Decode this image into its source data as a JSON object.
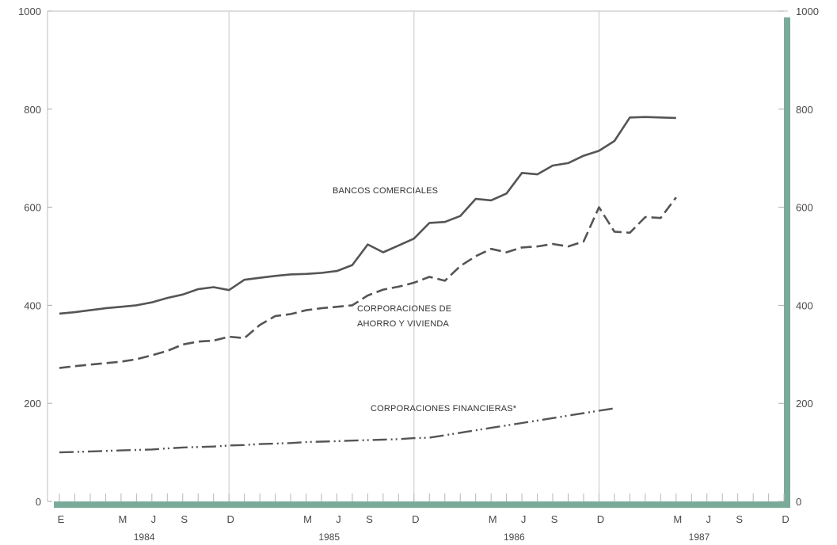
{
  "chart_data": {
    "type": "line",
    "ylim": [
      0,
      1000
    ],
    "y_ticks": [
      "0",
      "200",
      "400",
      "600",
      "800",
      "1000"
    ],
    "y_ticks_right": [
      "0",
      "200",
      "400",
      "600",
      "800",
      "1000"
    ],
    "month_ticks": [
      "E",
      "M",
      "J",
      "S",
      "D",
      "M",
      "J",
      "S",
      "D",
      "M",
      "J",
      "S",
      "D",
      "M",
      "J",
      "S",
      "D"
    ],
    "years": [
      "1984",
      "1985",
      "1986",
      "1987"
    ],
    "grid": "vertical lines at each December",
    "series": [
      {
        "name": "BANCOS COMERCIALES",
        "style": "solid",
        "color": "#555555",
        "values": [
          383,
          386,
          390,
          394,
          397,
          400,
          406,
          415,
          422,
          433,
          437,
          431,
          452,
          456,
          460,
          463,
          464,
          466,
          470,
          482,
          524,
          508,
          522,
          536,
          568,
          570,
          582,
          617,
          614,
          628,
          670,
          667,
          685,
          690,
          705,
          715,
          735,
          783,
          784,
          783,
          782
        ]
      },
      {
        "name": "CORPORACIONES DE AHORRO Y VIVIENDA",
        "style": "dashed",
        "color": "#555555",
        "values": [
          272,
          276,
          279,
          282,
          285,
          290,
          298,
          307,
          320,
          326,
          328,
          336,
          333,
          360,
          378,
          382,
          390,
          394,
          397,
          400,
          420,
          432,
          438,
          446,
          458,
          450,
          480,
          500,
          515,
          508,
          518,
          520,
          525,
          520,
          530,
          600,
          550,
          548,
          580,
          578,
          620
        ]
      },
      {
        "name": "CORPORACIONES FINANCIERAS*",
        "style": "dash-dot-dot",
        "color": "#555555",
        "values": [
          100,
          101,
          102,
          103,
          104,
          105,
          106,
          108,
          110,
          111,
          112,
          114,
          115,
          117,
          118,
          119,
          121,
          122,
          123,
          124,
          125,
          126,
          127,
          129,
          130,
          135,
          140,
          145,
          150,
          155,
          160,
          165,
          170,
          175,
          180,
          185,
          190
        ]
      }
    ],
    "accent_color": "#7aaa98"
  }
}
